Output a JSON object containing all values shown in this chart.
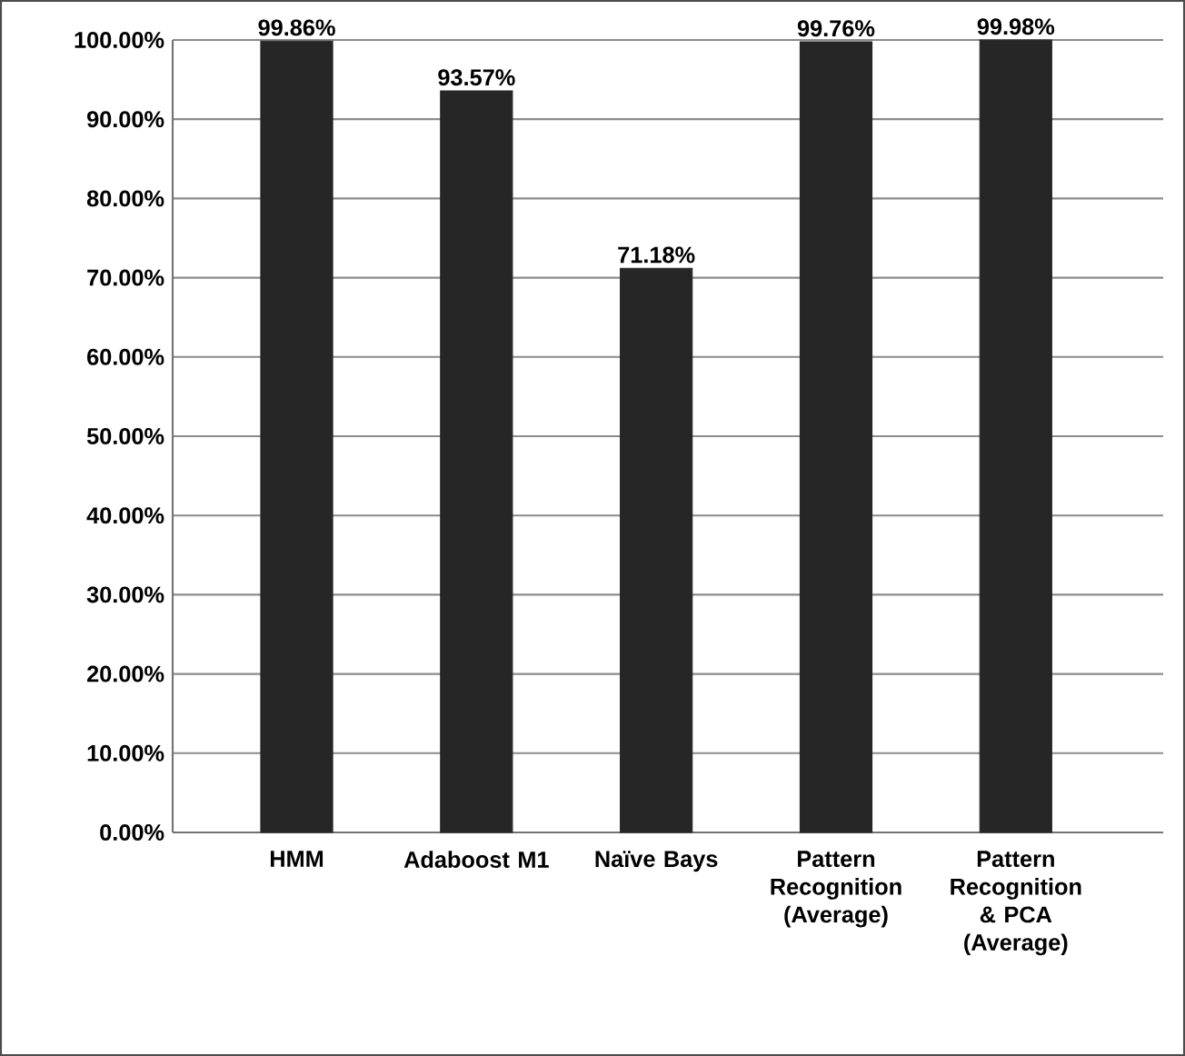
{
  "chart_data": {
    "type": "bar",
    "categories": [
      "HMM",
      "Adaboost M1",
      "Naïve Bays",
      "Pattern Recognition (Average)",
      "Pattern Recognition & PCA (Average)"
    ],
    "values": [
      99.86,
      93.57,
      71.18,
      99.76,
      99.98
    ],
    "value_labels": [
      "99.86%",
      "93.57%",
      "71.18%",
      "99.76%",
      "99.98%"
    ],
    "color": "#262626",
    "ylim": [
      0,
      100
    ],
    "yticks": [
      {
        "value": 0,
        "label": "0.00%"
      },
      {
        "value": 10,
        "label": "10.00%"
      },
      {
        "value": 20,
        "label": "20.00%"
      },
      {
        "value": 30,
        "label": "30.00%"
      },
      {
        "value": 40,
        "label": "40.00%"
      },
      {
        "value": 50,
        "label": "50.00%"
      },
      {
        "value": 60,
        "label": "60.00%"
      },
      {
        "value": 70,
        "label": "70.00%"
      },
      {
        "value": 80,
        "label": "80.00%"
      },
      {
        "value": 90,
        "label": "90.00%"
      },
      {
        "value": 100,
        "label": "100.00%"
      }
    ],
    "grid": "y"
  }
}
